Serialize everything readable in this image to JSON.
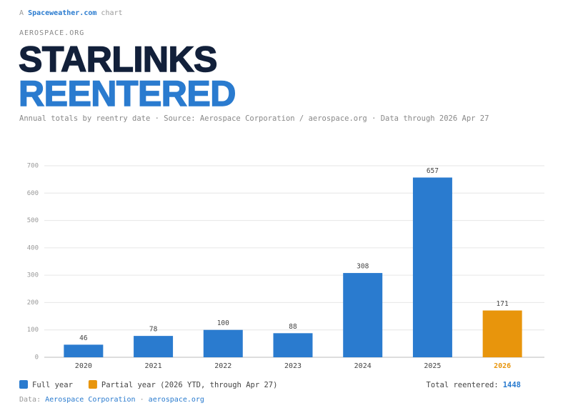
{
  "header": {
    "prefix": "A",
    "brand": "Spaceweather.com",
    "suffix": "chart",
    "source_tag": "AEROSPACE.ORG"
  },
  "chart_data": {
    "type": "bar",
    "title": [
      "STARLINKS",
      "REENTERED"
    ],
    "subtitle": "Annual totals by reentry date · Source: Aerospace Corporation / aerospace.org · Data through 2026 Apr 27",
    "categories": [
      "2020",
      "2021",
      "2022",
      "2023",
      "2024",
      "2025",
      "2026"
    ],
    "series": [
      {
        "name": "Full year",
        "color": "#2a7bcf",
        "values": [
          46,
          78,
          100,
          88,
          308,
          657,
          null
        ]
      },
      {
        "name": "Partial year (2026 YTD, through Apr 27)",
        "color": "#e8950c",
        "values": [
          null,
          null,
          null,
          null,
          null,
          null,
          171
        ]
      }
    ],
    "ylim": [
      0,
      700
    ],
    "yticks": [
      0,
      100,
      200,
      300,
      400,
      500,
      600,
      700
    ],
    "grid": true,
    "total_label": "Total reentered:",
    "total": 1448
  },
  "footer": {
    "label": "Data:",
    "source": "Aerospace Corporation",
    "separator": "·",
    "site": "aerospace.org"
  }
}
